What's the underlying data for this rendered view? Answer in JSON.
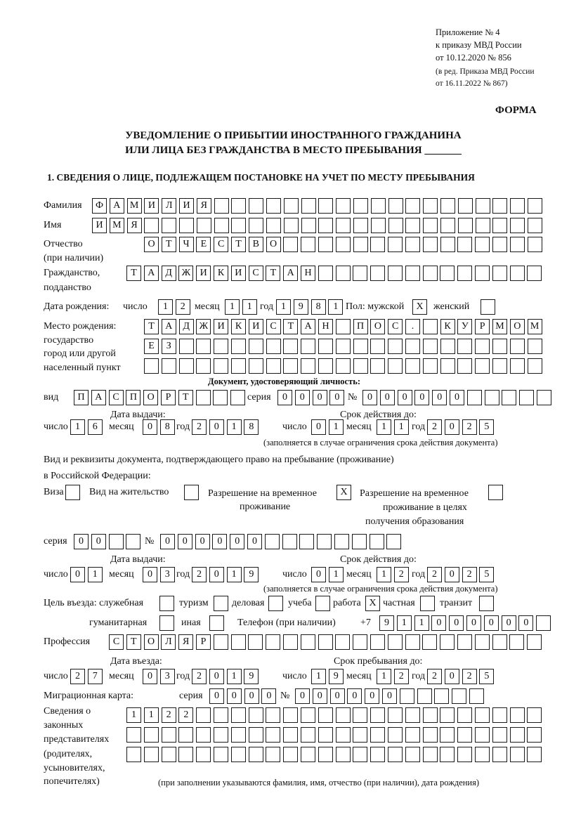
{
  "header": {
    "line1": "Приложение № 4",
    "line2": "к приказу МВД России",
    "line3": "от 10.12.2020 № 856",
    "line4": "(в ред. Приказа МВД России",
    "line5": "от 16.11.2022 № 867)",
    "form": "ФОРМА"
  },
  "title": {
    "line1": "УВЕДОМЛЕНИЕ О ПРИБЫТИИ ИНОСТРАННОГО ГРАЖДАНИНА",
    "line2": "ИЛИ ЛИЦА БЕЗ ГРАЖДАНСТВА В МЕСТО ПРЕБЫВАНИЯ _______"
  },
  "section1": {
    "title": "1. СВЕДЕНИЯ О ЛИЦЕ, ПОДЛЕЖАЩЕМ ПОСТАНОВКЕ НА УЧЕТ ПО МЕСТУ ПРЕБЫВАНИЯ"
  },
  "person": {
    "surname": {
      "label": "Фамилия",
      "value": "ФАМИЛИЯ"
    },
    "name": {
      "label": "Имя",
      "value": "ИМЯ"
    },
    "patronymic": {
      "label1": "Отчество",
      "label2": "(при наличии)",
      "value": "ОТЧЕСТВО"
    },
    "citizenship": {
      "label1": "Гражданство,",
      "label2": "подданство",
      "value": "ТАДЖИКИСТАН"
    },
    "birth_date": {
      "label": "Дата рождения:",
      "day_label": "число",
      "day": "12",
      "month_label": "месяц",
      "month": "11",
      "year_label": "год",
      "year": "1981"
    },
    "sex": {
      "label": "Пол: мужской",
      "male": "X",
      "female_label": "женский",
      "female": ""
    },
    "birth_place": {
      "label1": "Место рождения:",
      "label2": "государство",
      "label3": "город или другой",
      "label4": "населенный пункт",
      "row1": "ТАДЖИКИСТАН ПОС. КУРМОМБ",
      "row2": "ЕЗ",
      "row3": ""
    }
  },
  "id_doc": {
    "title": "Документ, удостоверяющий личность:",
    "kind_label": "вид",
    "kind": "ПАСПОРТ",
    "series_label": "серия",
    "series": "0000",
    "number_label": "№",
    "number": "000000",
    "issue_label": "Дата выдачи:",
    "issue": {
      "day": "16",
      "month": "08",
      "year": "2018"
    },
    "valid_label": "Срок действия до:",
    "valid": {
      "day": "01",
      "month": "11",
      "year": "2025"
    },
    "note": "(заполняется в случае ограничения срока действия документа)"
  },
  "labels": {
    "day": "число",
    "month": "месяц",
    "year": "год"
  },
  "stay_doc": {
    "title1": "Вид и реквизиты документа, подтверждающего право на пребывание (проживание)",
    "title2": "в Российской Федерации:",
    "visa_label": "Виза",
    "visa": "",
    "residence_label": "Вид на жительство",
    "residence": "",
    "trp_label1": "Разрешение на временное",
    "trp_label2": "проживание",
    "trp": "X",
    "trp_edu_label1": "Разрешение на временное",
    "trp_edu_label2": "проживание в целях",
    "trp_edu_label3": "получения образования",
    "trp_edu": "",
    "series_label": "серия",
    "series": "00",
    "number_label": "№",
    "number": "000000",
    "issue_label": "Дата выдачи:",
    "issue": {
      "day": "01",
      "month": "03",
      "year": "2019"
    },
    "valid_label": "Срок действия до:",
    "valid": {
      "day": "01",
      "month": "12",
      "year": "2025"
    },
    "note": "(заполняется в случае ограничения срока действия документа)"
  },
  "purpose": {
    "label": "Цель въезда: служебная",
    "service": "",
    "tourism_label": "туризм",
    "tourism": "",
    "business_label": "деловая",
    "business": "",
    "study_label": "учеба",
    "study": "",
    "work_label": "работа",
    "work": "X",
    "private_label": "частная",
    "private": "",
    "transit_label": "транзит",
    "transit": "",
    "humanitarian_label": "гуманитарная",
    "humanitarian": "",
    "other_label": "иная",
    "other": ""
  },
  "phone": {
    "label": "Телефон (при наличии)",
    "prefix": "+7",
    "value": "911000000"
  },
  "profession": {
    "label": "Профессия",
    "value": "СТОЛЯР"
  },
  "entry": {
    "entry_label": "Дата въезда:",
    "entry": {
      "day": "27",
      "month": "03",
      "year": "2019"
    },
    "stay_label": "Срок пребывания до:",
    "stay": {
      "day": "19",
      "month": "12",
      "year": "2025"
    }
  },
  "migration_card": {
    "label": "Миграционная карта:",
    "series_label": "серия",
    "series": "0000",
    "number_label": "№",
    "number": "000000"
  },
  "representatives": {
    "label1": "Сведения о",
    "label2": "законных",
    "label3": "представителях",
    "label4": "(родителях,",
    "label5": "усыновителях,",
    "label6": "попечителях)",
    "row1": "1122",
    "row2": "",
    "row3": "",
    "note": "(при заполнении указываются фамилия, имя, отчество (при наличии), дата рождения)"
  }
}
